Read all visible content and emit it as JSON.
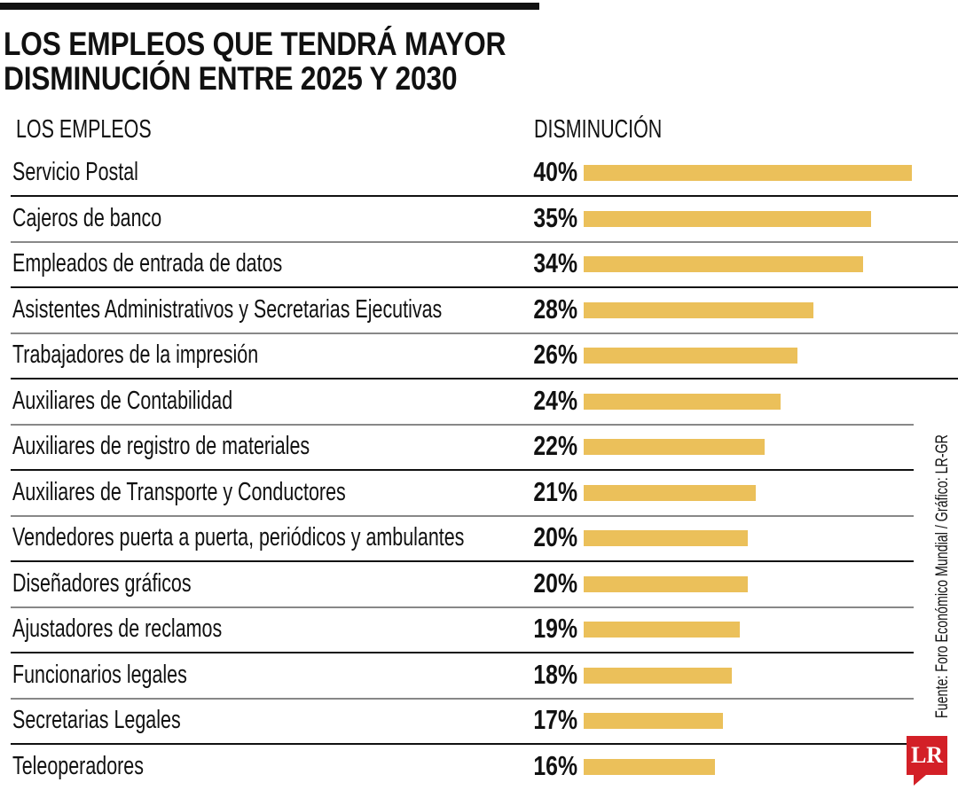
{
  "title_line1": "LOS EMPLEOS QUE TENDRÁ MAYOR",
  "title_line2": "DISMINUCIÓN ENTRE 2025 Y 2030",
  "source": "Fuente: Foro Económico Mundial / Gráfico: LR-GR",
  "logo": "LR",
  "colors": {
    "bar": "#ebc05a",
    "divider_dark": "#111111",
    "divider_light": "#888888",
    "logo": "#d32027"
  },
  "chart_data": {
    "type": "bar",
    "orientation": "horizontal",
    "title": "LOS EMPLEOS QUE TENDRÁ MAYOR DISMINUCIÓN ENTRE 2025 Y 2030",
    "xlabel": "DISMINUCIÓN",
    "ylabel": "LOS EMPLEOS",
    "unit": "%",
    "xlim": [
      0,
      40
    ],
    "categories": [
      "Servicio Postal",
      "Cajeros de banco",
      "Empleados de entrada de datos",
      "Asistentes Administrativos y Secretarias Ejecutivas",
      "Trabajadores de la impresión",
      "Auxiliares de Contabilidad",
      "Auxiliares de registro de materiales",
      "Auxiliares de Transporte y Conductores",
      "Vendedores puerta a puerta, periódicos y ambulantes",
      "Diseñadores gráficos",
      "Ajustadores de reclamos",
      "Funcionarios legales",
      "Secretarias Legales",
      "Teleoperadores"
    ],
    "values": [
      40,
      35,
      34,
      28,
      26,
      24,
      22,
      21,
      20,
      20,
      19,
      18,
      17,
      16
    ],
    "labels": [
      "40%",
      "35%",
      "34%",
      "28%",
      "26%",
      "24%",
      "22%",
      "21%",
      "20%",
      "20%",
      "19%",
      "18%",
      "17%",
      "16%"
    ]
  }
}
